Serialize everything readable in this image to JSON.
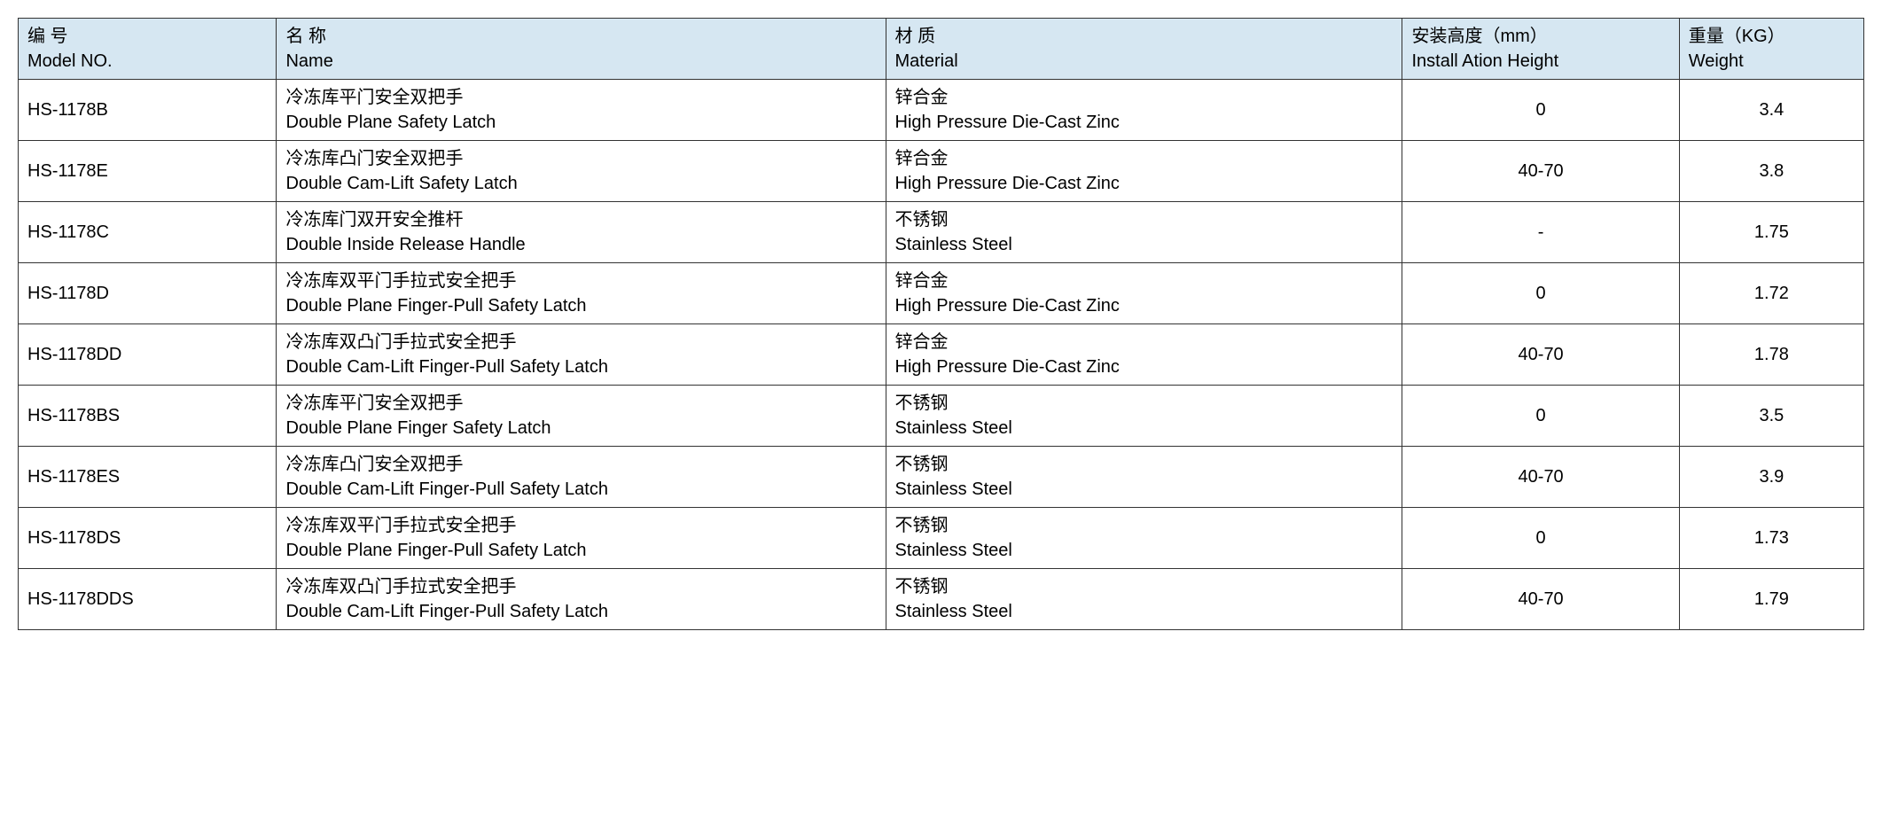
{
  "table": {
    "type": "table",
    "background_color": "#ffffff",
    "header_bg_color": "#d6e7f2",
    "border_color": "#333333",
    "font_size": 20,
    "columns": [
      {
        "key": "model",
        "cn": "编  号",
        "en": "Model NO.",
        "width": "14%",
        "align": "left"
      },
      {
        "key": "name",
        "cn": "名  称",
        "en": "Name",
        "width": "33%",
        "align": "left"
      },
      {
        "key": "material",
        "cn": "材  质",
        "en": "Material",
        "width": "28%",
        "align": "left"
      },
      {
        "key": "height",
        "cn": "安装高度（mm）",
        "en": "Install Ation Height",
        "width": "15%",
        "align": "center"
      },
      {
        "key": "weight",
        "cn": "重量（KG）",
        "en": "Weight",
        "width": "10%",
        "align": "center"
      }
    ],
    "rows": [
      {
        "model": "HS-1178B",
        "name_cn": "冷冻库平门安全双把手",
        "name_en": "Double Plane Safety Latch",
        "material_cn": "锌合金",
        "material_en": "High Pressure Die-Cast Zinc",
        "height": "0",
        "weight": "3.4"
      },
      {
        "model": "HS-1178E",
        "name_cn": "冷冻库凸门安全双把手",
        "name_en": "Double Cam-Lift Safety Latch",
        "material_cn": "锌合金",
        "material_en": "High Pressure Die-Cast Zinc",
        "height": "40-70",
        "weight": "3.8"
      },
      {
        "model": "HS-1178C",
        "name_cn": "冷冻库门双开安全推杆",
        "name_en": "Double Inside Release Handle",
        "material_cn": "不锈钢",
        "material_en": "Stainless Steel",
        "height": "-",
        "weight": "1.75"
      },
      {
        "model": "HS-1178D",
        "name_cn": "冷冻库双平门手拉式安全把手",
        "name_en": "Double Plane Finger-Pull Safety Latch",
        "material_cn": "锌合金",
        "material_en": "High Pressure Die-Cast Zinc",
        "height": "0",
        "weight": "1.72"
      },
      {
        "model": "HS-1178DD",
        "name_cn": "冷冻库双凸门手拉式安全把手",
        "name_en": "Double Cam-Lift Finger-Pull Safety Latch",
        "material_cn": "锌合金",
        "material_en": "High Pressure Die-Cast Zinc",
        "height": "40-70",
        "weight": "1.78"
      },
      {
        "model": "HS-1178BS",
        "name_cn": "冷冻库平门安全双把手",
        "name_en": "Double Plane Finger Safety Latch",
        "material_cn": "不锈钢",
        "material_en": "Stainless Steel",
        "height": "0",
        "weight": "3.5"
      },
      {
        "model": "HS-1178ES",
        "name_cn": "冷冻库凸门安全双把手",
        "name_en": "Double Cam-Lift Finger-Pull Safety Latch",
        "material_cn": "不锈钢",
        "material_en": "Stainless Steel",
        "height": "40-70",
        "weight": "3.9"
      },
      {
        "model": "HS-1178DS",
        "name_cn": "冷冻库双平门手拉式安全把手",
        "name_en": "Double Plane Finger-Pull Safety Latch",
        "material_cn": "不锈钢",
        "material_en": "Stainless Steel",
        "height": "0",
        "weight": "1.73"
      },
      {
        "model": "HS-1178DDS",
        "name_cn": "冷冻库双凸门手拉式安全把手",
        "name_en": "Double Cam-Lift Finger-Pull Safety Latch",
        "material_cn": "不锈钢",
        "material_en": "Stainless Steel",
        "height": "40-70",
        "weight": "1.79"
      }
    ]
  }
}
